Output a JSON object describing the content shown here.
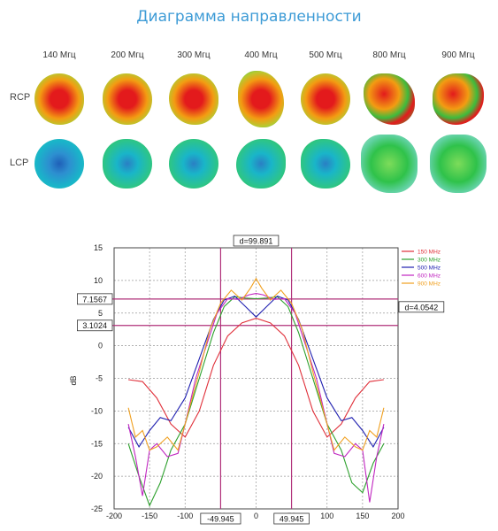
{
  "header": {
    "title": "Диаграмма направленности"
  },
  "patterns": {
    "frequencies": [
      "140 Мгц",
      "200 Мгц",
      "300 Мгц",
      "400 Мгц",
      "500 Мгц",
      "800 Мгц",
      "900 Мгц"
    ],
    "rows": [
      "RCP",
      "LCP"
    ],
    "colors": {
      "rcp_core": "#e31a1c",
      "rcp_mid": "#f39c12",
      "rcp_edge": "#3dbb3d",
      "lcp_core": "#1f5fb8",
      "lcp_mid": "#19b5c9",
      "lcp_edge": "#2fc24a"
    }
  },
  "chart_data": {
    "type": "line",
    "xlim": [
      -200,
      200
    ],
    "ylim": [
      -25,
      15
    ],
    "xticks": [
      -200,
      -150,
      -100,
      -50,
      0,
      50,
      100,
      150,
      200
    ],
    "yticks": [
      -25,
      -20,
      -15,
      -10,
      -5,
      0,
      5,
      10,
      15
    ],
    "xtick_labels": [
      "-200",
      "-150",
      "-100",
      "-50",
      "0",
      "50",
      "100",
      "150",
      "200"
    ],
    "ytick_labels": [
      "-25",
      "-20",
      "-15",
      "-10",
      "-5",
      "0",
      "5",
      "10",
      "15"
    ],
    "ylabel": "dB",
    "xlabel": "",
    "grid": true,
    "legend_position": "top-right",
    "series": [
      {
        "name": "150 MHz",
        "color": "#e0303a",
        "x": [
          -180,
          -160,
          -140,
          -120,
          -100,
          -80,
          -60,
          -40,
          -20,
          0,
          20,
          40,
          60,
          80,
          100,
          120,
          140,
          160,
          180
        ],
        "y": [
          -5.2,
          -5.5,
          -8,
          -12,
          -14,
          -10,
          -3,
          1.5,
          3.5,
          4.2,
          3.5,
          1.5,
          -3,
          -10,
          -14,
          -12,
          -8,
          -5.5,
          -5.2
        ]
      },
      {
        "name": "300 MHz",
        "color": "#2ca02c",
        "x": [
          -180,
          -165,
          -150,
          -135,
          -120,
          -100,
          -80,
          -60,
          -45,
          -30,
          -15,
          0,
          15,
          30,
          45,
          60,
          80,
          100,
          120,
          135,
          150,
          165,
          180
        ],
        "y": [
          -15,
          -20,
          -24.5,
          -21,
          -16,
          -12,
          -5,
          2,
          6,
          7.5,
          7.3,
          7.2,
          7.3,
          7.5,
          6,
          2,
          -5,
          -12,
          -16,
          -21,
          -22.5,
          -18,
          -15
        ]
      },
      {
        "name": "500 MHz",
        "color": "#2020b0",
        "x": [
          -180,
          -165,
          -150,
          -135,
          -120,
          -100,
          -80,
          -60,
          -45,
          -30,
          -15,
          0,
          15,
          30,
          45,
          60,
          80,
          100,
          120,
          135,
          150,
          165,
          180
        ],
        "y": [
          -12.5,
          -15.5,
          -13,
          -11,
          -11.5,
          -8,
          -2,
          4,
          7,
          7.6,
          6,
          4.4,
          6,
          7.6,
          7,
          4,
          -2,
          -8,
          -11.5,
          -11,
          -13,
          -15.5,
          -12.5
        ]
      },
      {
        "name": "600 MHz",
        "color": "#c026c0",
        "x": [
          -180,
          -170,
          -160,
          -150,
          -140,
          -125,
          -110,
          -100,
          -85,
          -70,
          -55,
          -40,
          -25,
          -10,
          0,
          10,
          25,
          40,
          55,
          70,
          85,
          100,
          110,
          125,
          140,
          150,
          160,
          170,
          180
        ],
        "y": [
          -12,
          -17,
          -23,
          -16,
          -15,
          -17,
          -16.5,
          -12,
          -5,
          0,
          5,
          7.2,
          7.1,
          7.8,
          8,
          7.8,
          7.1,
          7.2,
          5,
          0,
          -5,
          -12,
          -16.5,
          -17,
          -15,
          -16,
          -24,
          -17,
          -12
        ]
      },
      {
        "name": "900 MHz",
        "color": "#f0a020",
        "x": [
          -180,
          -170,
          -160,
          -150,
          -140,
          -125,
          -110,
          -95,
          -80,
          -65,
          -50,
          -35,
          -20,
          -8,
          0,
          8,
          20,
          35,
          50,
          65,
          80,
          95,
          110,
          125,
          140,
          150,
          160,
          170,
          180
        ],
        "y": [
          -9.5,
          -14,
          -13,
          -16,
          -15.5,
          -14,
          -16,
          -10,
          -4,
          2.5,
          6.5,
          8.5,
          7,
          8.8,
          10.3,
          8.8,
          7,
          8.5,
          6.5,
          2.5,
          -4,
          -10,
          -16,
          -14,
          -15.5,
          -16,
          -13,
          -14,
          -9.5
        ]
      }
    ],
    "markers": {
      "v_lines": [
        -49.945,
        49.945
      ],
      "h_lines": [
        7.1567,
        3.1024
      ],
      "v_labels": [
        "-49.945",
        "49.945"
      ],
      "h_labels": [
        "7.1567",
        "3.1024"
      ],
      "top_label": "d=99.891",
      "right_label": "d=4.0542",
      "color": "#b0307a"
    }
  }
}
